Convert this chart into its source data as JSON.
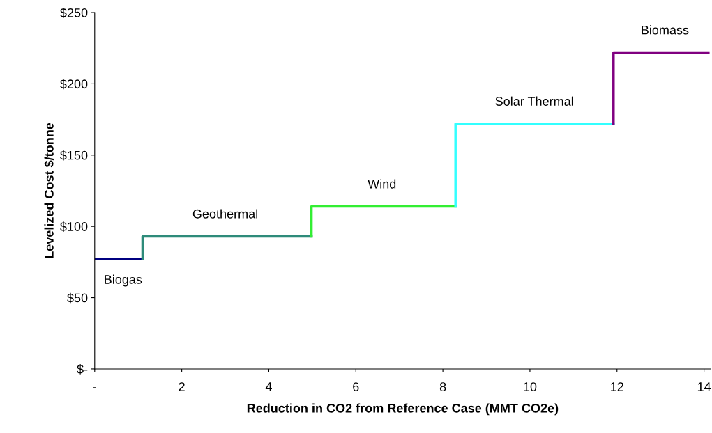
{
  "chart_data": {
    "type": "step",
    "xlabel": "Reduction in CO2 from Reference Case (MMT CO2e)",
    "ylabel": "Levelized Cost $/tonne",
    "series": [
      {
        "color": "#000080",
        "x": [
          0,
          1.1
        ],
        "values": [
          77,
          77
        ]
      },
      {
        "color": "#2e8b7a",
        "x": [
          1.1,
          1.1,
          4.98
        ],
        "values": [
          77,
          93,
          93
        ]
      },
      {
        "color": "#33ee33",
        "x": [
          4.98,
          4.98,
          8.29
        ],
        "values": [
          93,
          114,
          114
        ]
      },
      {
        "color": "#33ffff",
        "x": [
          8.29,
          8.29,
          11.92
        ],
        "values": [
          114,
          172,
          172
        ]
      },
      {
        "color": "#800080",
        "x": [
          11.92,
          11.92,
          14.1
        ],
        "values": [
          172,
          222,
          222
        ]
      }
    ],
    "annotations": [
      {
        "text": "Biogas",
        "x": 0.65,
        "y": 77
      },
      {
        "text": "Geothermal",
        "x": 3.0,
        "y": 93
      },
      {
        "text": "Wind",
        "x": 6.6,
        "y": 114
      },
      {
        "text": "Solar Thermal",
        "x": 10.1,
        "y": 172
      },
      {
        "text": "Biomass",
        "x": 13.1,
        "y": 222
      }
    ],
    "xlim": [
      0,
      14.15
    ],
    "xticks": [
      {
        "value": 0,
        "label": "-"
      },
      2,
      4,
      6,
      8,
      10,
      12,
      14
    ],
    "ylim": [
      0,
      250
    ],
    "yticks": [
      {
        "value": 0,
        "label": "$-"
      },
      {
        "value": 50,
        "label": "$50"
      },
      {
        "value": 100,
        "label": "$100"
      },
      {
        "value": 150,
        "label": "$150"
      },
      {
        "value": 200,
        "label": "$200"
      },
      {
        "value": 250,
        "label": "$250"
      }
    ],
    "grid": false,
    "legend": false,
    "line_style": "solid"
  }
}
